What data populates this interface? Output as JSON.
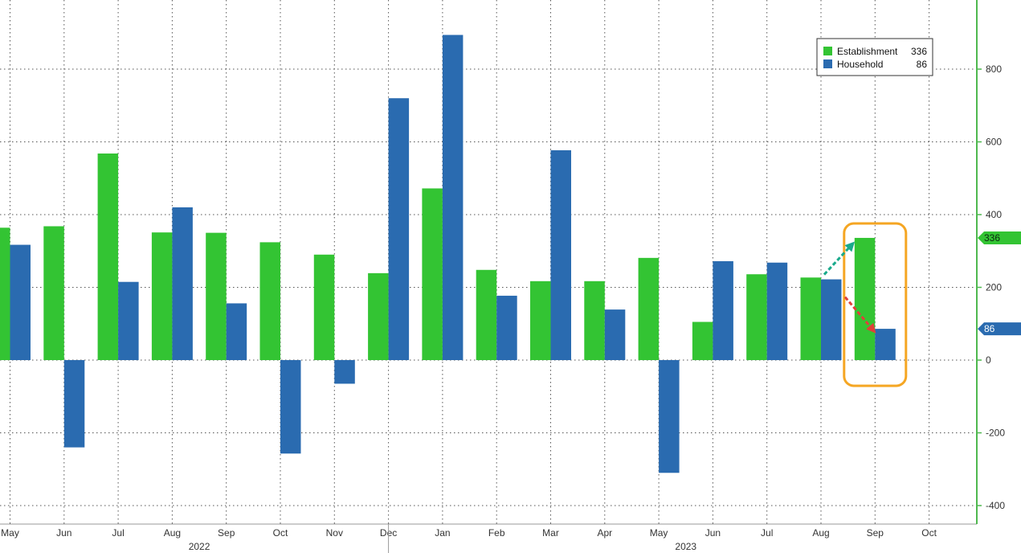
{
  "chart_data": {
    "type": "bar",
    "categories": [
      "May",
      "Jun",
      "Jul",
      "Aug",
      "Sep",
      "Oct",
      "Nov",
      "Dec",
      "Jan",
      "Feb",
      "Mar",
      "Apr",
      "May",
      "Jun",
      "Jul",
      "Aug",
      "Sep",
      "Oct"
    ],
    "years": [
      {
        "label": "2022",
        "from": 0,
        "to": 7
      },
      {
        "label": "2023",
        "from": 8,
        "to": 17
      }
    ],
    "series": [
      {
        "name": "Establishment",
        "color": "#33c433",
        "values": [
          364,
          368,
          568,
          351,
          350,
          324,
          290,
          239,
          472,
          248,
          217,
          217,
          281,
          105,
          236,
          227,
          336,
          null
        ]
      },
      {
        "name": "Household",
        "color": "#2a6bb0",
        "values": [
          317,
          -240,
          215,
          420,
          156,
          -257,
          -65,
          720,
          894,
          177,
          577,
          139,
          -310,
          272,
          268,
          222,
          86,
          null
        ]
      }
    ],
    "legend": {
      "position": "top-right",
      "entries": [
        {
          "name": "Establishment",
          "value": "336",
          "color": "#33c433"
        },
        {
          "name": "Household",
          "value": "86",
          "color": "#2a6bb0"
        }
      ]
    },
    "last_value_tags": [
      {
        "value": 336,
        "label": "336",
        "color": "#33c433"
      },
      {
        "value": 86,
        "label": "86",
        "color": "#2a6bb0"
      }
    ],
    "y_ticks": [
      800,
      600,
      400,
      200,
      0,
      -200,
      -400
    ],
    "ylim": [
      -400,
      900
    ],
    "grid": true,
    "y_axis_side": "right",
    "title": "",
    "xlabel": "",
    "ylabel": "",
    "annotation": {
      "highlight_category": "Sep",
      "highlight_year": "2023",
      "box_color": "#f5a623",
      "arrow_up_color": "#1aaa8c",
      "arrow_down_color": "#e0403a"
    }
  }
}
